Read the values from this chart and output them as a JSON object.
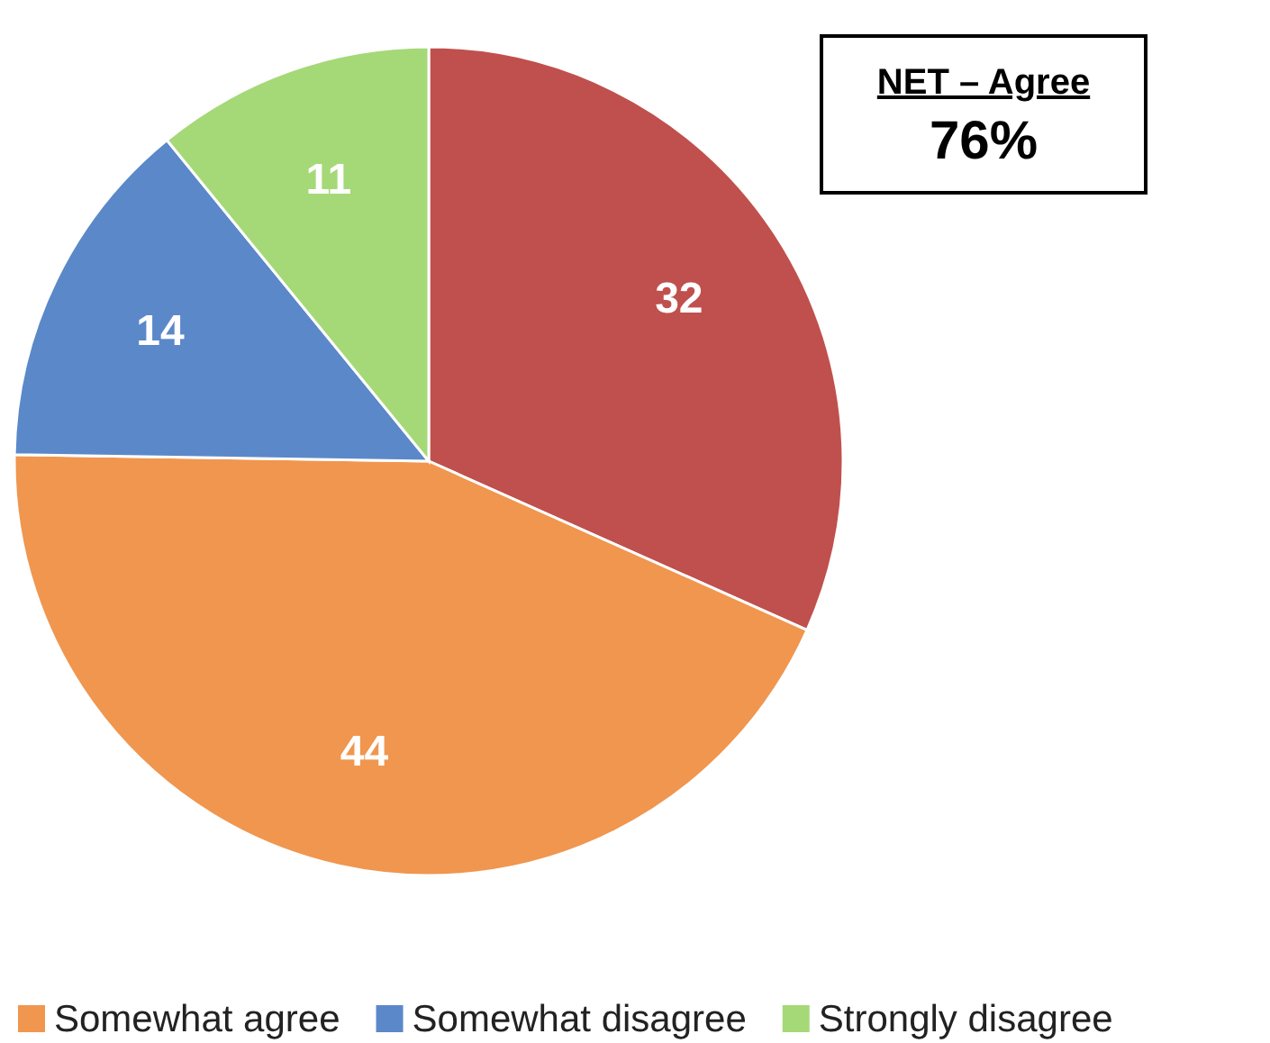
{
  "chart_data": {
    "type": "pie",
    "categories": [
      null,
      "Somewhat agree",
      "Somewhat disagree",
      "Strongly disagree"
    ],
    "values": [
      32,
      44,
      14,
      11
    ],
    "colors": [
      "#c0504d",
      "#f0964f",
      "#5b88c9",
      "#a5d977"
    ],
    "data_labels": true,
    "legend": "bottom",
    "annotations": [
      "NET – Agree",
      "76%"
    ]
  }
}
